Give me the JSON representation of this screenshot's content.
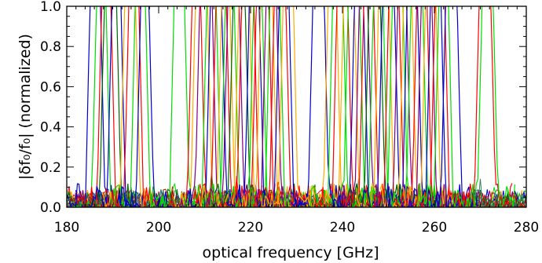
{
  "chart_data": {
    "type": "line",
    "title": "",
    "xlabel": "optical frequency [GHz]",
    "ylabel": "|δf₀/f₀| (normalized)",
    "xlim": [
      180,
      280
    ],
    "ylim": [
      0,
      1.0
    ],
    "x_ticks": [
      "180",
      "200",
      "220",
      "240",
      "260",
      "280"
    ],
    "y_ticks": [
      "0.0",
      "0.2",
      "0.4",
      "0.6",
      "0.8",
      "1.0"
    ],
    "grid": false,
    "legend": "none",
    "series_colors": [
      "#ff0000",
      "#00dd00",
      "#0000cc",
      "#ffaa00",
      "#800080",
      "#006400",
      "#cc0000",
      "#2e8b57"
    ],
    "peaks": [
      {
        "x": 186.2,
        "color": "#0000cc"
      },
      {
        "x": 187.5,
        "color": "#00dd00"
      },
      {
        "x": 188.6,
        "color": "#ff0000"
      },
      {
        "x": 189.5,
        "color": "#006400"
      },
      {
        "x": 190.8,
        "color": "#0000cc"
      },
      {
        "x": 193.8,
        "color": "#ffaa00"
      },
      {
        "x": 194.6,
        "color": "#ff0000"
      },
      {
        "x": 196.0,
        "color": "#00dd00"
      },
      {
        "x": 197.0,
        "color": "#0000cc"
      },
      {
        "x": 204.5,
        "color": "#00dd00"
      },
      {
        "x": 208.2,
        "color": "#ff0000"
      },
      {
        "x": 209.3,
        "color": "#ffaa00"
      },
      {
        "x": 210.3,
        "color": "#800080"
      },
      {
        "x": 211.5,
        "color": "#00dd00"
      },
      {
        "x": 212.5,
        "color": "#0000cc"
      },
      {
        "x": 213.6,
        "color": "#ff0000"
      },
      {
        "x": 214.6,
        "color": "#ffaa00"
      },
      {
        "x": 215.5,
        "color": "#00dd00"
      },
      {
        "x": 216.3,
        "color": "#800080"
      },
      {
        "x": 217.5,
        "color": "#006400"
      },
      {
        "x": 218.6,
        "color": "#ffaa00"
      },
      {
        "x": 219.4,
        "color": "#ff0000"
      },
      {
        "x": 220.8,
        "color": "#0000cc"
      },
      {
        "x": 221.6,
        "color": "#00dd00"
      },
      {
        "x": 222.6,
        "color": "#ff0000"
      },
      {
        "x": 223.5,
        "color": "#ffaa00"
      },
      {
        "x": 224.5,
        "color": "#800080"
      },
      {
        "x": 225.3,
        "color": "#00dd00"
      },
      {
        "x": 226.4,
        "color": "#ff0000"
      },
      {
        "x": 227.3,
        "color": "#0000cc"
      },
      {
        "x": 228.2,
        "color": "#ffaa00"
      },
      {
        "x": 234.8,
        "color": "#0000cc"
      },
      {
        "x": 237.8,
        "color": "#ffaa00"
      },
      {
        "x": 239.0,
        "color": "#00dd00"
      },
      {
        "x": 240.0,
        "color": "#ff0000"
      },
      {
        "x": 241.4,
        "color": "#ffaa00"
      },
      {
        "x": 242.5,
        "color": "#00dd00"
      },
      {
        "x": 243.6,
        "color": "#0000cc"
      },
      {
        "x": 244.6,
        "color": "#800080"
      },
      {
        "x": 245.7,
        "color": "#ff0000"
      },
      {
        "x": 247.0,
        "color": "#006400"
      },
      {
        "x": 247.8,
        "color": "#00dd00"
      },
      {
        "x": 249.0,
        "color": "#ffaa00"
      },
      {
        "x": 250.0,
        "color": "#0000cc"
      },
      {
        "x": 251.2,
        "color": "#ff0000"
      },
      {
        "x": 252.0,
        "color": "#00dd00"
      },
      {
        "x": 253.0,
        "color": "#800080"
      },
      {
        "x": 254.2,
        "color": "#ffaa00"
      },
      {
        "x": 255.2,
        "color": "#0000cc"
      },
      {
        "x": 256.2,
        "color": "#00dd00"
      },
      {
        "x": 257.3,
        "color": "#ff0000"
      },
      {
        "x": 258.3,
        "color": "#800080"
      },
      {
        "x": 259.2,
        "color": "#ffaa00"
      },
      {
        "x": 260.3,
        "color": "#0000cc"
      },
      {
        "x": 261.2,
        "color": "#ff0000"
      },
      {
        "x": 262.0,
        "color": "#00dd00"
      },
      {
        "x": 263.7,
        "color": "#0000cc"
      },
      {
        "x": 271.0,
        "color": "#ff0000"
      },
      {
        "x": 271.6,
        "color": "#00dd00"
      }
    ]
  }
}
